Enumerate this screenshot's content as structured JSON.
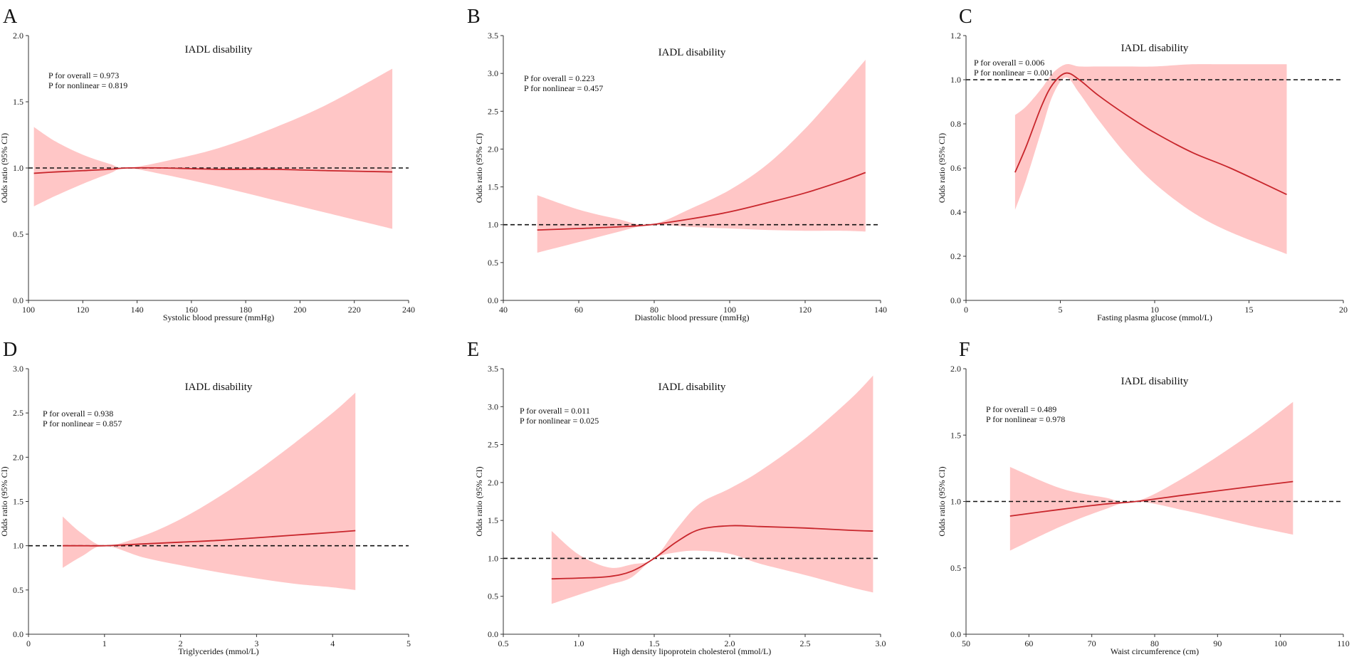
{
  "colors": {
    "line": "#c8262c",
    "ci": "#ffc6c6",
    "axis": "#333333",
    "ref": "#111111"
  },
  "chart_data": [
    {
      "type": "line",
      "letter": "A",
      "title": "IADL disability",
      "xlabel": "Systolic blood pressure (mmHg)",
      "ylabel": "Odds ratio (95% CI)",
      "xlim": [
        100,
        240
      ],
      "ylim": [
        0,
        2.0
      ],
      "xticks": [
        100,
        120,
        140,
        160,
        180,
        200,
        220,
        240
      ],
      "yticks": [
        0.0,
        0.5,
        1.0,
        1.5,
        2.0
      ],
      "annotations": [
        "P for overall = 0.973",
        "P for nonlinear = 0.819"
      ],
      "reference": 1.0,
      "x": [
        102,
        110,
        120,
        130,
        136,
        150,
        170,
        190,
        210,
        234
      ],
      "or": [
        0.96,
        0.97,
        0.98,
        0.99,
        1.0,
        1.0,
        0.99,
        0.99,
        0.98,
        0.97
      ],
      "lower": [
        0.71,
        0.79,
        0.88,
        0.96,
        1.0,
        0.95,
        0.86,
        0.76,
        0.66,
        0.54
      ],
      "upper": [
        1.31,
        1.2,
        1.1,
        1.03,
        1.0,
        1.05,
        1.15,
        1.3,
        1.48,
        1.75
      ]
    },
    {
      "type": "line",
      "letter": "B",
      "title": "IADL disability",
      "xlabel": "Diastolic blood pressure (mmHg)",
      "ylabel": "Odds ratio (95% CI)",
      "xlim": [
        40,
        140
      ],
      "ylim": [
        0,
        3.5
      ],
      "xticks": [
        40,
        60,
        80,
        100,
        120,
        140
      ],
      "yticks": [
        0.0,
        0.5,
        1.0,
        1.5,
        2.0,
        2.5,
        3.0,
        3.5
      ],
      "annotations": [
        "P for overall = 0.223",
        "P for nonlinear = 0.457"
      ],
      "reference": 1.0,
      "x": [
        49,
        60,
        70,
        79,
        90,
        100,
        110,
        120,
        130,
        136
      ],
      "or": [
        0.93,
        0.95,
        0.97,
        1.0,
        1.08,
        1.17,
        1.29,
        1.42,
        1.58,
        1.69
      ],
      "lower": [
        0.63,
        0.77,
        0.9,
        1.0,
        0.97,
        0.95,
        0.93,
        0.92,
        0.92,
        0.91
      ],
      "upper": [
        1.39,
        1.2,
        1.08,
        1.0,
        1.22,
        1.46,
        1.8,
        2.27,
        2.83,
        3.18
      ]
    },
    {
      "type": "line",
      "letter": "C",
      "title": "IADL disability",
      "xlabel": "Fasting plasma glucose (mmol/L)",
      "ylabel": "Odds ratio (95% CI)",
      "xlim": [
        0,
        20
      ],
      "ylim": [
        0,
        1.2
      ],
      "xticks": [
        0,
        5,
        10,
        15,
        20
      ],
      "yticks": [
        0.0,
        0.2,
        0.4,
        0.6,
        0.8,
        1.0,
        1.2
      ],
      "annotations": [
        "P for overall = 0.006",
        "P for nonlinear = 0.001"
      ],
      "reference": 1.0,
      "x": [
        2.6,
        3.2,
        4.0,
        4.6,
        5.3,
        6.0,
        7.0,
        8.5,
        10.0,
        12.0,
        14.0,
        17.0
      ],
      "or": [
        0.58,
        0.7,
        0.88,
        0.98,
        1.03,
        1.0,
        0.93,
        0.84,
        0.76,
        0.67,
        0.6,
        0.48
      ],
      "lower": [
        0.41,
        0.55,
        0.77,
        0.93,
        1.01,
        0.94,
        0.82,
        0.66,
        0.53,
        0.4,
        0.31,
        0.21
      ],
      "upper": [
        0.84,
        0.88,
        0.96,
        1.03,
        1.07,
        1.06,
        1.06,
        1.06,
        1.06,
        1.07,
        1.07,
        1.07
      ]
    },
    {
      "type": "line",
      "letter": "D",
      "title": "IADL disability",
      "xlabel": "Triglycerides (mmol/L)",
      "ylabel": "Odds ratio (95% CI)",
      "xlim": [
        0,
        5
      ],
      "ylim": [
        0,
        3.0
      ],
      "xticks": [
        0,
        1,
        2,
        3,
        4,
        5
      ],
      "yticks": [
        0.0,
        0.5,
        1.0,
        1.5,
        2.0,
        2.5,
        3.0
      ],
      "annotations": [
        "P for overall = 0.938",
        "P for nonlinear = 0.857"
      ],
      "reference": 1.0,
      "x": [
        0.45,
        0.7,
        1.0,
        1.5,
        2.0,
        2.5,
        3.0,
        3.5,
        4.0,
        4.3
      ],
      "or": [
        1.0,
        1.0,
        1.0,
        1.02,
        1.04,
        1.06,
        1.09,
        1.12,
        1.15,
        1.17
      ],
      "lower": [
        0.75,
        0.88,
        1.0,
        0.87,
        0.78,
        0.7,
        0.63,
        0.57,
        0.53,
        0.5
      ],
      "upper": [
        1.33,
        1.14,
        1.0,
        1.11,
        1.3,
        1.55,
        1.84,
        2.16,
        2.5,
        2.73
      ]
    },
    {
      "type": "line",
      "letter": "E",
      "title": "IADL disability",
      "xlabel": "High density lipoprotein cholesterol (mmol/L)",
      "ylabel": "Odds ratio (95% CI)",
      "xlim": [
        0.5,
        3.0
      ],
      "ylim": [
        0,
        3.5
      ],
      "xticks": [
        0.5,
        1.0,
        1.5,
        2.0,
        2.5,
        3.0
      ],
      "yticks": [
        0.0,
        0.5,
        1.0,
        1.5,
        2.0,
        2.5,
        3.0,
        3.5
      ],
      "annotations": [
        "P for overall = 0.011",
        "P for nonlinear = 0.025"
      ],
      "reference": 1.0,
      "x": [
        0.82,
        1.0,
        1.2,
        1.35,
        1.5,
        1.65,
        1.8,
        2.0,
        2.2,
        2.5,
        2.8,
        2.95
      ],
      "or": [
        0.73,
        0.74,
        0.76,
        0.83,
        1.0,
        1.22,
        1.38,
        1.43,
        1.42,
        1.4,
        1.37,
        1.36
      ],
      "lower": [
        0.4,
        0.52,
        0.65,
        0.75,
        1.0,
        1.08,
        1.1,
        1.06,
        0.93,
        0.78,
        0.62,
        0.55
      ],
      "upper": [
        1.36,
        1.05,
        0.88,
        0.92,
        1.0,
        1.39,
        1.72,
        1.92,
        2.15,
        2.58,
        3.1,
        3.41
      ]
    },
    {
      "type": "line",
      "letter": "F",
      "title": "IADL disability",
      "xlabel": "Waist circumference (cm)",
      "ylabel": "Odds ratio (95% CI)",
      "xlim": [
        50,
        110
      ],
      "ylim": [
        0,
        2.0
      ],
      "xticks": [
        50,
        60,
        70,
        80,
        90,
        100,
        110
      ],
      "yticks": [
        0.0,
        0.5,
        1.0,
        1.5,
        2.0
      ],
      "annotations": [
        "P for overall = 0.489",
        "P for nonlinear = 0.978"
      ],
      "reference": 1.0,
      "x": [
        57,
        65,
        72,
        77,
        85,
        95,
        102
      ],
      "or": [
        0.89,
        0.94,
        0.98,
        1.0,
        1.05,
        1.11,
        1.15
      ],
      "lower": [
        0.63,
        0.81,
        0.94,
        1.0,
        0.93,
        0.82,
        0.75
      ],
      "upper": [
        1.26,
        1.1,
        1.03,
        1.0,
        1.19,
        1.5,
        1.75
      ]
    }
  ]
}
